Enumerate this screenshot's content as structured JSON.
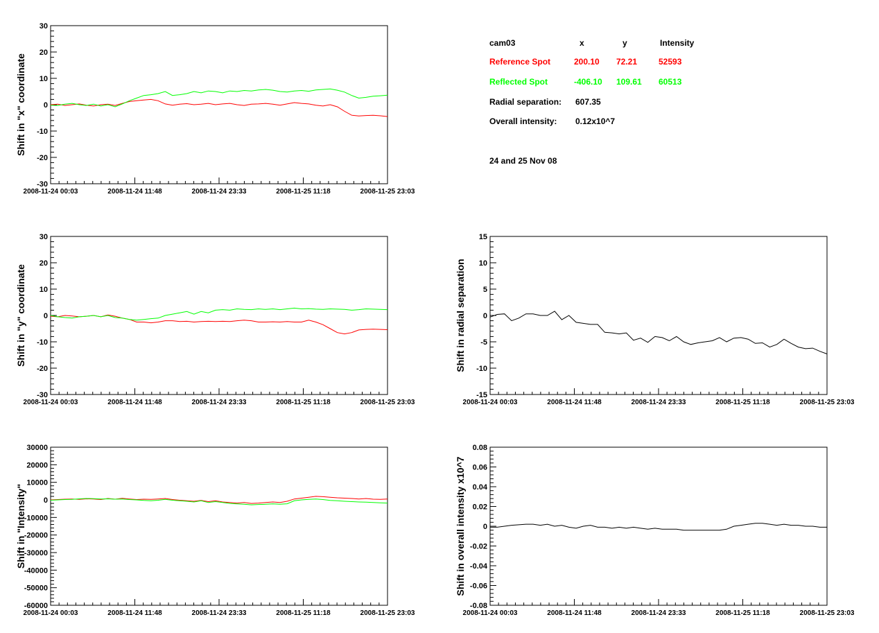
{
  "info": {
    "camera": "cam03",
    "col_x": "x",
    "col_y": "y",
    "col_intensity": "Intensity",
    "reference": {
      "label": "Reference Spot",
      "x": "200.10",
      "y": "72.21",
      "intensity": "52593",
      "color": "#ff0000"
    },
    "reflected": {
      "label": "Reflected Spot",
      "x": "-406.10",
      "y": "109.61",
      "intensity": "60513",
      "color": "#00ff00"
    },
    "radial_label": "Radial separation:",
    "radial_value": "607.35",
    "overall_label": "Overall intensity:",
    "overall_value": "0.12x10^7",
    "date_note": "24 and 25 Nov 08"
  },
  "chart_data": [
    {
      "id": "shift-x",
      "type": "line",
      "ylabel": "Shift in \"x\" coordinate",
      "xlabel": "",
      "ylim": [
        -30,
        30
      ],
      "yticks": [
        -30,
        -20,
        -10,
        0,
        10,
        20,
        30
      ],
      "ytick_labels": [
        "-30",
        "-20",
        "-10",
        "0",
        "10",
        "20",
        "30"
      ],
      "xlim": [
        0,
        4
      ],
      "xtick_labels": [
        "2008-11-24 00:03",
        "2008-11-24 11:48",
        "2008-11-24 23:33",
        "2008-11-25 11:18",
        "2008-11-25 23:03"
      ],
      "series": [
        {
          "color": "#ff0000",
          "values": [
            0,
            0.2,
            -0.3,
            0,
            0.3,
            -0.2,
            -0.5,
            0,
            0.2,
            -0.3,
            0.5,
            1.2,
            1.5,
            1.8,
            2,
            1.5,
            0.3,
            -0.2,
            0.2,
            0.4,
            0,
            0.2,
            0.5,
            0,
            0.3,
            0.5,
            0,
            -0.3,
            0.2,
            0.3,
            0.5,
            0.2,
            -0.2,
            0.3,
            0.8,
            0.5,
            0.3,
            -0.2,
            -0.5,
            0,
            -0.8,
            -2.5,
            -4,
            -4.3,
            -4.1,
            -4,
            -4.2,
            -4.5
          ]
        },
        {
          "color": "#00ff00",
          "values": [
            -0.2,
            -0.3,
            0.2,
            0.5,
            0,
            -0.3,
            0.2,
            -0.5,
            0,
            -0.8,
            0.3,
            1.5,
            2.5,
            3.5,
            3.8,
            4.2,
            5,
            3.5,
            3.8,
            4.2,
            5,
            4.5,
            5.2,
            5,
            4.5,
            5.2,
            5,
            5.4,
            5.2,
            5.6,
            5.8,
            5.5,
            5,
            4.8,
            5.2,
            5.4,
            5.1,
            5.6,
            5.8,
            6,
            5.5,
            4.8,
            3.5,
            2.5,
            2.8,
            3.2,
            3.4,
            3.6
          ]
        }
      ]
    },
    {
      "id": "shift-y",
      "type": "line",
      "ylabel": "Shift in \"y\" coordinate",
      "xlabel": "",
      "ylim": [
        -30,
        30
      ],
      "yticks": [
        -30,
        -20,
        -10,
        0,
        10,
        20,
        30
      ],
      "ytick_labels": [
        "-30",
        "-20",
        "-10",
        "0",
        "10",
        "20",
        "30"
      ],
      "xlim": [
        0,
        4
      ],
      "xtick_labels": [
        "2008-11-24 00:03",
        "2008-11-24 11:48",
        "2008-11-24 23:33",
        "2008-11-25 11:18",
        "2008-11-25 23:03"
      ],
      "series": [
        {
          "color": "#ff0000",
          "values": [
            -0.3,
            -0.5,
            0,
            -0.2,
            -0.5,
            -0.3,
            0,
            -0.5,
            0.2,
            -0.3,
            -1,
            -1.5,
            -2.5,
            -2.5,
            -2.8,
            -2.5,
            -2,
            -2,
            -2.3,
            -2.2,
            -2.5,
            -2.3,
            -2.2,
            -2.3,
            -2.2,
            -2.3,
            -2,
            -1.8,
            -2,
            -2.5,
            -2.5,
            -2.4,
            -2.5,
            -2.3,
            -2.5,
            -2.5,
            -1.8,
            -2.5,
            -3.5,
            -5,
            -6.5,
            -7,
            -6.5,
            -5.5,
            -5.3,
            -5.2,
            -5.3,
            -5.4
          ]
        },
        {
          "color": "#00ff00",
          "values": [
            0,
            -0.5,
            -0.8,
            -1,
            -0.5,
            -0.3,
            0,
            -0.5,
            0,
            -0.8,
            -1,
            -1.5,
            -1.8,
            -1.5,
            -1.2,
            -1,
            0,
            0.5,
            1,
            1.5,
            0.5,
            1.5,
            1,
            2,
            2.2,
            2,
            2.5,
            2.3,
            2.2,
            2.5,
            2.3,
            2.5,
            2.2,
            2.5,
            2.8,
            2.5,
            2.6,
            2.4,
            2.3,
            2.5,
            2.4,
            2.3,
            2,
            2.2,
            2.5,
            2.4,
            2.3,
            2.2
          ]
        }
      ]
    },
    {
      "id": "shift-intensity",
      "type": "line",
      "ylabel": "Shift in \"Intensity\"",
      "xlabel": "",
      "ylim": [
        -60000,
        30000
      ],
      "yticks": [
        -60000,
        -50000,
        -40000,
        -30000,
        -20000,
        -10000,
        0,
        10000,
        20000,
        30000
      ],
      "ytick_labels": [
        "-60000",
        "-50000",
        "-40000",
        "-30000",
        "-20000",
        "-10000",
        "0",
        "10000",
        "20000",
        "30000"
      ],
      "xlim": [
        0,
        4
      ],
      "xtick_labels": [
        "2008-11-24 00:03",
        "2008-11-24 11:48",
        "2008-11-24 23:33",
        "2008-11-25 11:18",
        "2008-11-25 23:03"
      ],
      "series": [
        {
          "color": "#ff0000",
          "values": [
            0,
            200,
            400,
            500,
            300,
            600,
            500,
            200,
            800,
            400,
            900,
            500,
            200,
            400,
            300,
            500,
            800,
            200,
            -200,
            -500,
            -800,
            -300,
            -1000,
            -500,
            -1200,
            -1500,
            -1800,
            -1500,
            -2000,
            -1800,
            -1500,
            -1200,
            -1500,
            -800,
            500,
            1000,
            1500,
            2000,
            1800,
            1500,
            1200,
            1000,
            800,
            500,
            800,
            400,
            300,
            500
          ]
        },
        {
          "color": "#00ff00",
          "values": [
            -200,
            0,
            200,
            300,
            600,
            800,
            700,
            500,
            600,
            400,
            500,
            200,
            0,
            -300,
            -500,
            -200,
            300,
            -200,
            -500,
            -800,
            -1200,
            -500,
            -1500,
            -1000,
            -1500,
            -2000,
            -2300,
            -2500,
            -2800,
            -2600,
            -2500,
            -2300,
            -2500,
            -2200,
            -500,
            0,
            300,
            500,
            200,
            -300,
            -500,
            -800,
            -1000,
            -1200,
            -1300,
            -1500,
            -1700,
            -1800
          ]
        }
      ]
    },
    {
      "id": "shift-radial",
      "type": "line",
      "ylabel": "Shift in radial separation",
      "xlabel": "",
      "ylim": [
        -15,
        15
      ],
      "yticks": [
        -15,
        -10,
        -5,
        0,
        5,
        10,
        15
      ],
      "ytick_labels": [
        "-15",
        "-10",
        "-5",
        "0",
        "5",
        "10",
        "15"
      ],
      "xlim": [
        0,
        4
      ],
      "xtick_labels": [
        "2008-11-24 00:03",
        "2008-11-24 11:48",
        "2008-11-24 23:33",
        "2008-11-25 11:18",
        "2008-11-25 23:03"
      ],
      "series": [
        {
          "color": "#000000",
          "values": [
            -0.3,
            0.2,
            0.3,
            -1,
            -0.5,
            0.3,
            0.3,
            0,
            0,
            0.8,
            -0.8,
            0,
            -1.3,
            -1.5,
            -1.7,
            -1.7,
            -3.2,
            -3.3,
            -3.5,
            -3.3,
            -4.7,
            -4.3,
            -5.1,
            -4,
            -4.2,
            -4.8,
            -4,
            -5,
            -5.5,
            -5.2,
            -5,
            -4.8,
            -4.2,
            -5,
            -4.3,
            -4.2,
            -4.5,
            -5.3,
            -5.2,
            -6,
            -5.5,
            -4.5,
            -5.3,
            -6,
            -6.3,
            -6.2,
            -6.8,
            -7.3
          ]
        }
      ]
    },
    {
      "id": "shift-overall",
      "type": "line",
      "ylabel": "Shift in overall intensity x10^7",
      "xlabel": "",
      "ylim": [
        -0.08,
        0.08
      ],
      "yticks": [
        -0.08,
        -0.06,
        -0.04,
        -0.02,
        0,
        0.02,
        0.04,
        0.06,
        0.08
      ],
      "ytick_labels": [
        "-0.08",
        "-0.06",
        "-0.04",
        "-0.02",
        "0",
        "0.02",
        "0.04",
        "0.06",
        "0.08"
      ],
      "xlim": [
        0,
        4
      ],
      "xtick_labels": [
        "2008-11-24 00:03",
        "2008-11-24 11:48",
        "2008-11-24 23:33",
        "2008-11-25 11:18",
        "2008-11-25 23:03"
      ],
      "series": [
        {
          "color": "#000000",
          "values": [
            -0.001,
            -0.001,
            0,
            0.001,
            0.0015,
            0.002,
            0.002,
            0.001,
            0.002,
            0,
            0.001,
            -0.001,
            -0.002,
            0,
            0.001,
            -0.001,
            -0.001,
            -0.002,
            -0.001,
            -0.002,
            -0.001,
            -0.002,
            -0.003,
            -0.002,
            -0.003,
            -0.003,
            -0.003,
            -0.004,
            -0.004,
            -0.004,
            -0.004,
            -0.004,
            -0.004,
            -0.003,
            0,
            0.001,
            0.002,
            0.003,
            0.003,
            0.002,
            0.001,
            0.002,
            0.001,
            0.001,
            0,
            0,
            -0.001,
            -0.001
          ]
        }
      ]
    }
  ]
}
